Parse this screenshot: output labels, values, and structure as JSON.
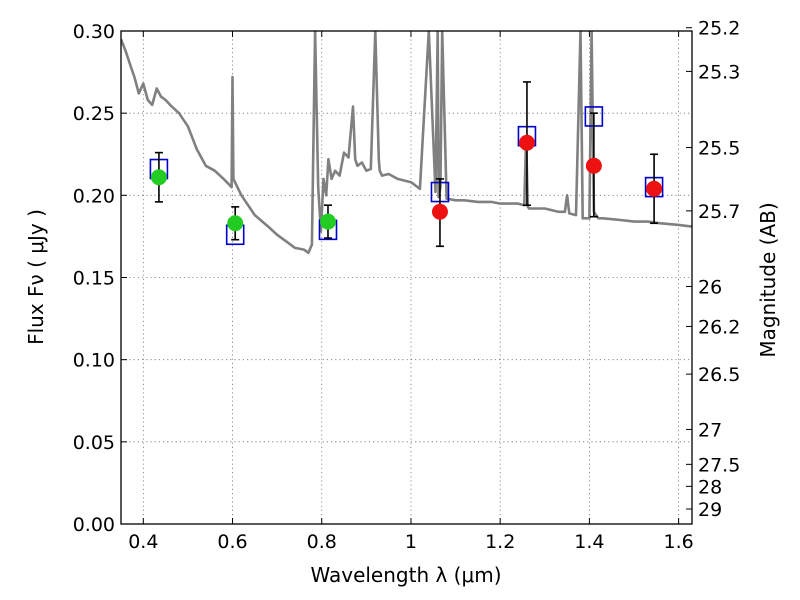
{
  "chart_data": {
    "type": "scatter",
    "xlabel": "Wavelength  λ (μm)",
    "ylabel": "Flux  Fν  ( μJy )",
    "y2label": "Magnitude (AB)",
    "xlim": [
      0.35,
      1.63
    ],
    "ylim": [
      0.0,
      0.3
    ],
    "grid": true,
    "x_ticks": [
      0.4,
      0.6,
      0.8,
      1.0,
      1.2,
      1.4,
      1.6
    ],
    "x_tick_labels": [
      "0.4",
      "0.6",
      "0.8",
      "1",
      "1.2",
      "1.4",
      "1.6"
    ],
    "y_ticks": [
      0.0,
      0.05,
      0.1,
      0.15,
      0.2,
      0.25,
      0.3
    ],
    "y_tick_labels": [
      "0.00",
      "0.05",
      "0.10",
      "0.15",
      "0.20",
      "0.25",
      "0.30"
    ],
    "mag_ticks": [
      "25.2",
      "25.3",
      "25.5",
      "25.7",
      "26",
      "26.2",
      "26.5",
      "27",
      "27.5",
      "28",
      "29"
    ],
    "colors": {
      "model": "#808080",
      "optical": "#22cc22",
      "nir": "#ee1111",
      "model_flux": "#0000cc",
      "errorbar": "#000000"
    },
    "series": [
      {
        "kind": "observed-optical",
        "color": "#22cc22",
        "points": [
          {
            "x": 0.435,
            "y": 0.211,
            "ylow": 0.196,
            "yhigh": 0.226
          },
          {
            "x": 0.606,
            "y": 0.183,
            "ylow": 0.173,
            "yhigh": 0.193
          },
          {
            "x": 0.814,
            "y": 0.184,
            "ylow": 0.174,
            "yhigh": 0.194
          }
        ]
      },
      {
        "kind": "observed-nir",
        "color": "#ee1111",
        "points": [
          {
            "x": 1.065,
            "y": 0.19,
            "ylow": 0.169,
            "yhigh": 0.21
          },
          {
            "x": 1.26,
            "y": 0.232,
            "ylow": 0.194,
            "yhigh": 0.269
          },
          {
            "x": 1.41,
            "y": 0.218,
            "ylow": 0.187,
            "yhigh": 0.25
          },
          {
            "x": 1.545,
            "y": 0.204,
            "ylow": 0.183,
            "yhigh": 0.225
          }
        ]
      },
      {
        "kind": "model-band-flux",
        "color": "#0000cc",
        "points": [
          {
            "x": 0.435,
            "y": 0.216
          },
          {
            "x": 0.606,
            "y": 0.176
          },
          {
            "x": 0.814,
            "y": 0.179
          },
          {
            "x": 1.065,
            "y": 0.202
          },
          {
            "x": 1.26,
            "y": 0.236
          },
          {
            "x": 1.41,
            "y": 0.248
          },
          {
            "x": 1.545,
            "y": 0.205
          }
        ]
      }
    ],
    "model_spectrum": {
      "color": "#808080",
      "x": [
        0.35,
        0.36,
        0.37,
        0.38,
        0.39,
        0.4,
        0.41,
        0.42,
        0.43,
        0.44,
        0.45,
        0.46,
        0.48,
        0.5,
        0.52,
        0.54,
        0.56,
        0.58,
        0.598,
        0.6,
        0.602,
        0.62,
        0.65,
        0.68,
        0.7,
        0.72,
        0.74,
        0.76,
        0.77,
        0.778,
        0.785,
        0.792,
        0.798,
        0.804,
        0.81,
        0.815,
        0.822,
        0.83,
        0.84,
        0.85,
        0.86,
        0.87,
        0.875,
        0.88,
        0.89,
        0.9,
        0.91,
        0.92,
        0.928,
        0.93,
        0.935,
        0.95,
        0.97,
        1.0,
        1.02,
        1.04,
        1.055,
        1.06,
        1.062,
        1.066,
        1.07,
        1.08,
        1.1,
        1.12,
        1.15,
        1.18,
        1.2,
        1.24,
        1.254,
        1.258,
        1.262,
        1.265,
        1.28,
        1.3,
        1.33,
        1.345,
        1.35,
        1.355,
        1.37,
        1.38,
        1.385,
        1.4,
        1.405,
        1.41,
        1.42,
        1.43,
        1.47,
        1.5,
        1.53,
        1.56,
        1.6,
        1.63
      ],
      "y": [
        0.295,
        0.288,
        0.28,
        0.272,
        0.262,
        0.268,
        0.258,
        0.255,
        0.265,
        0.26,
        0.258,
        0.255,
        0.25,
        0.242,
        0.228,
        0.218,
        0.215,
        0.21,
        0.205,
        0.272,
        0.21,
        0.2,
        0.188,
        0.181,
        0.176,
        0.172,
        0.168,
        0.167,
        0.165,
        0.17,
        0.3,
        0.205,
        0.178,
        0.21,
        0.2,
        0.222,
        0.21,
        0.215,
        0.212,
        0.226,
        0.223,
        0.254,
        0.222,
        0.218,
        0.22,
        0.215,
        0.216,
        0.3,
        0.222,
        0.215,
        0.212,
        0.213,
        0.21,
        0.208,
        0.204,
        0.3,
        0.202,
        0.3,
        0.199,
        0.205,
        0.3,
        0.198,
        0.197,
        0.197,
        0.196,
        0.196,
        0.195,
        0.195,
        0.194,
        0.235,
        0.193,
        0.192,
        0.192,
        0.192,
        0.19,
        0.19,
        0.2,
        0.189,
        0.188,
        0.3,
        0.186,
        0.186,
        0.3,
        0.19,
        0.186,
        0.186,
        0.185,
        0.184,
        0.184,
        0.183,
        0.182,
        0.181
      ]
    }
  }
}
